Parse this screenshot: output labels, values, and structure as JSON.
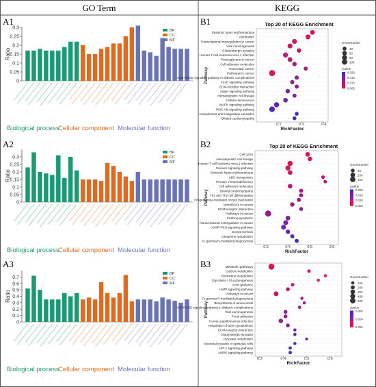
{
  "headers": {
    "go": "GO Term",
    "kegg": "KEGG"
  },
  "panel_labels": {
    "a1": "A1",
    "a2": "A2",
    "a3": "A3",
    "b1": "B1",
    "b2": "B2",
    "b3": "B3"
  },
  "go_axis": {
    "ylabel": "Ratio"
  },
  "go_legend": [
    "BP",
    "CC",
    "MF"
  ],
  "go_groups": [
    "Biological process",
    "Cellular component",
    "Molecular function"
  ],
  "kegg_axis": {
    "xlabel": "RichFactor",
    "ylabel": "Pathway"
  },
  "kegg_legend": {
    "count_title": "GeneNumber",
    "color_title": "qvalue"
  },
  "colors": {
    "bp": "#1a9a72",
    "cc": "#e06a1e",
    "mf": "#6a74b5",
    "q_low": "#e8134d",
    "q_high": "#3b2fc6"
  },
  "chart_data": [
    {
      "panel": "A1",
      "type": "bar",
      "ylim": [
        0,
        0.3
      ],
      "yticks": [
        0,
        0.05,
        0.1,
        0.15,
        0.2,
        0.25,
        0.3
      ],
      "series": [
        {
          "name": "BP",
          "values": [
            0.17,
            0.17,
            0.18,
            0.17,
            0.17,
            0.17,
            0.19,
            0.22,
            0.22
          ]
        },
        {
          "name": "CC",
          "values": [
            0.2,
            0.15,
            0.15,
            0.18,
            0.19,
            0.21,
            0.21,
            0.25,
            0.3
          ]
        },
        {
          "name": "MF",
          "values": [
            0.31,
            0.17,
            0.16,
            0.14,
            0.24,
            0.19,
            0.18,
            0.18,
            0.18
          ]
        }
      ]
    },
    {
      "panel": "A2",
      "type": "bar",
      "ylim": [
        0,
        0.35
      ],
      "yticks": [
        0,
        0.05,
        0.1,
        0.15,
        0.2,
        0.25,
        0.3
      ],
      "series": [
        {
          "name": "BP",
          "values": [
            0.23,
            0.33,
            0.2,
            0.19,
            0.18,
            0.31,
            0.16,
            0.3,
            0.21
          ]
        },
        {
          "name": "CC",
          "values": [
            0.15,
            0.15,
            0.15,
            0.14,
            0.26,
            0.24,
            0.2,
            0.17,
            0.14
          ]
        },
        {
          "name": "MF",
          "values": [
            0.2,
            0.15,
            0.15,
            0.15,
            0.15,
            0.15,
            0.15,
            0.15,
            0.15
          ]
        }
      ]
    },
    {
      "panel": "A3",
      "type": "bar",
      "ylim": [
        0,
        0.8
      ],
      "yticks": [
        0,
        0.1,
        0.2,
        0.3,
        0.4,
        0.5,
        0.6,
        0.7
      ],
      "series": [
        {
          "name": "BP",
          "values": [
            0.52,
            0.72,
            0.5,
            0.35,
            0.35,
            0.35,
            0.45,
            0.4,
            0.45
          ]
        },
        {
          "name": "CC",
          "values": [
            0.35,
            0.38,
            0.35,
            0.62,
            0.45,
            0.38,
            0.45,
            0.73,
            0.32
          ]
        },
        {
          "name": "MF",
          "values": [
            0.35,
            0.35,
            0.35,
            0.32,
            0.38,
            0.35,
            0.33,
            0.3,
            0.35
          ]
        }
      ]
    },
    {
      "panel": "B1",
      "type": "scatter",
      "title": "Top 20 of KEGG Enrichment",
      "xlim": [
        0.1,
        0.42
      ],
      "xticks": [
        0.2,
        0.3,
        0.4
      ],
      "count_legend": [
        40,
        60,
        80,
        100
      ],
      "q_legend": [
        "0.020",
        "0.015",
        "0.010",
        "0.005"
      ],
      "qlim": [
        0.002,
        0.02
      ],
      "points": [
        {
          "pathway": "Systemic lupus erythematosus",
          "x": 0.35,
          "count": 50,
          "q": 0.003
        },
        {
          "pathway": "Alcoholism",
          "x": 0.33,
          "count": 55,
          "q": 0.004
        },
        {
          "pathway": "Transcriptional misregulation in cancer",
          "x": 0.27,
          "count": 55,
          "q": 0.004
        },
        {
          "pathway": "Viral carcinogenesis",
          "x": 0.25,
          "count": 55,
          "q": 0.005
        },
        {
          "pathway": "Glutamatergic synapse",
          "x": 0.29,
          "count": 40,
          "q": 0.006
        },
        {
          "pathway": "Human T-cell leukemia virus 1 infection",
          "x": 0.23,
          "count": 60,
          "q": 0.007
        },
        {
          "pathway": "Proteoglycans in cancer",
          "x": 0.25,
          "count": 50,
          "q": 0.007
        },
        {
          "pathway": "Cell adhesion molecules",
          "x": 0.27,
          "count": 40,
          "q": 0.008
        },
        {
          "pathway": "Pancreatic cancer",
          "x": 0.32,
          "count": 30,
          "q": 0.009
        },
        {
          "pathway": "Pathways in cancer",
          "x": 0.17,
          "count": 100,
          "q": 0.004
        },
        {
          "pathway": "AGE-RAGE signaling pathway in diabetic complications",
          "x": 0.28,
          "count": 35,
          "q": 0.011
        },
        {
          "pathway": "FoxO signaling pathway",
          "x": 0.26,
          "count": 35,
          "q": 0.012
        },
        {
          "pathway": "ECM-receptor interaction",
          "x": 0.28,
          "count": 30,
          "q": 0.012
        },
        {
          "pathway": "Hippo signaling pathway",
          "x": 0.24,
          "count": 40,
          "q": 0.013
        },
        {
          "pathway": "Hematopoietic cell lineage",
          "x": 0.27,
          "count": 30,
          "q": 0.014
        },
        {
          "pathway": "Cellular senescence",
          "x": 0.23,
          "count": 45,
          "q": 0.015
        },
        {
          "pathway": "MAPK signaling pathway",
          "x": 0.19,
          "count": 65,
          "q": 0.016
        },
        {
          "pathway": "PI3K-Akt signaling pathway",
          "x": 0.17,
          "count": 85,
          "q": 0.018
        },
        {
          "pathway": "Complement and coagulation cascades",
          "x": 0.28,
          "count": 25,
          "q": 0.019
        },
        {
          "pathway": "Dilated cardiomyopathy",
          "x": 0.27,
          "count": 25,
          "q": 0.02
        }
      ]
    },
    {
      "panel": "B2",
      "type": "scatter",
      "title": "Top 20 of KEGG Enrichment",
      "xlim": [
        0.25,
        0.63
      ],
      "xticks": [
        0.3,
        0.4,
        0.5,
        0.6
      ],
      "count_legend": [
        50,
        100,
        150
      ],
      "q_legend": [
        "0.020",
        "0.015",
        "0.010",
        "0.005"
      ],
      "qlim": [
        0.002,
        0.022
      ],
      "points": [
        {
          "pathway": "Cell cycle",
          "x": 0.49,
          "count": 70,
          "q": 0.003
        },
        {
          "pathway": "Hematopoietic cell lineage",
          "x": 0.5,
          "count": 60,
          "q": 0.004
        },
        {
          "pathway": "Human T-cell leukemia virus 1 infection",
          "x": 0.41,
          "count": 100,
          "q": 0.004
        },
        {
          "pathway": "Calcium signaling pathway",
          "x": 0.4,
          "count": 90,
          "q": 0.005
        },
        {
          "pathway": "Systemic lupus erythematosus",
          "x": 0.41,
          "count": 70,
          "q": 0.006
        },
        {
          "pathway": "ABC transporters",
          "x": 0.56,
          "count": 30,
          "q": 0.006
        },
        {
          "pathway": "Primary immunodeficiency",
          "x": 0.57,
          "count": 25,
          "q": 0.007
        },
        {
          "pathway": "Cell adhesion molecules",
          "x": 0.41,
          "count": 70,
          "q": 0.008
        },
        {
          "pathway": "Dilated cardiomyopathy",
          "x": 0.46,
          "count": 50,
          "q": 0.009
        },
        {
          "pathway": "Th1 and Th2 cell differentiation",
          "x": 0.46,
          "count": 45,
          "q": 0.01
        },
        {
          "pathway": "Progesterone-mediated oocyte maturation",
          "x": 0.45,
          "count": 45,
          "q": 0.011
        },
        {
          "pathway": "MicroRNAs in cancer",
          "x": 0.42,
          "count": 60,
          "q": 0.012
        },
        {
          "pathway": "ECM-receptor interaction",
          "x": 0.46,
          "count": 40,
          "q": 0.013
        },
        {
          "pathway": "Pathways in cancer",
          "x": 0.31,
          "count": 160,
          "q": 0.012
        },
        {
          "pathway": "Cushing syndrome",
          "x": 0.4,
          "count": 70,
          "q": 0.014
        },
        {
          "pathway": "Transcriptional misregulation in cancer",
          "x": 0.39,
          "count": 80,
          "q": 0.015
        },
        {
          "pathway": "cGMP-PKG signaling pathway",
          "x": 0.38,
          "count": 80,
          "q": 0.016
        },
        {
          "pathway": "Oocyte meiosis",
          "x": 0.4,
          "count": 60,
          "q": 0.017
        },
        {
          "pathway": "Glutamine metabolism",
          "x": 0.42,
          "count": 50,
          "q": 0.019
        },
        {
          "pathway": "Fc gamma R-mediated phagocytosis",
          "x": 0.44,
          "count": 45,
          "q": 0.021
        }
      ]
    },
    {
      "panel": "B3",
      "type": "scatter",
      "xlim": [
        0.28,
        0.65
      ],
      "xticks": [
        0.3,
        0.4,
        0.5,
        0.6
      ],
      "count_legend": [
        100,
        200,
        300,
        400,
        500
      ],
      "q_legend": [
        "0.006",
        "0.004",
        "0.002"
      ],
      "qlim": [
        0.0005,
        0.007
      ],
      "points": [
        {
          "pathway": "Metabolic pathways",
          "x": 0.35,
          "count": 500,
          "q": 0.001
        },
        {
          "pathway": "Carbon metabolism",
          "x": 0.51,
          "count": 80,
          "q": 0.001
        },
        {
          "pathway": "Pyrimidine metabolism",
          "x": 0.58,
          "count": 50,
          "q": 0.001
        },
        {
          "pathway": "Glycolysis / Gluconeogenesis",
          "x": 0.55,
          "count": 50,
          "q": 0.001
        },
        {
          "pathway": "Axon guidance",
          "x": 0.44,
          "count": 100,
          "q": 0.002
        },
        {
          "pathway": "cAMP signaling pathway",
          "x": 0.42,
          "count": 130,
          "q": 0.002
        },
        {
          "pathway": "Pathways in cancer",
          "x": 0.37,
          "count": 250,
          "q": 0.002
        },
        {
          "pathway": "Fc gamma R-mediated phagocytosis",
          "x": 0.48,
          "count": 60,
          "q": 0.003
        },
        {
          "pathway": "Biosynthesis of amino acids",
          "x": 0.49,
          "count": 60,
          "q": 0.003
        },
        {
          "pathway": "AGE-RAGE signaling pathway in diabetic complications",
          "x": 0.47,
          "count": 70,
          "q": 0.003
        },
        {
          "pathway": "Viral carcinogenesis",
          "x": 0.41,
          "count": 130,
          "q": 0.004
        },
        {
          "pathway": "Focal adhesion",
          "x": 0.41,
          "count": 130,
          "q": 0.004
        },
        {
          "pathway": "Human papillomavirus infection",
          "x": 0.39,
          "count": 200,
          "q": 0.004
        },
        {
          "pathway": "Regulation of actin cytoskeleton",
          "x": 0.42,
          "count": 130,
          "q": 0.004
        },
        {
          "pathway": "ECM-receptor interaction",
          "x": 0.45,
          "count": 60,
          "q": 0.005
        },
        {
          "pathway": "Glutamatergic synapse",
          "x": 0.45,
          "count": 70,
          "q": 0.005
        },
        {
          "pathway": "Pyruvate metabolism",
          "x": 0.5,
          "count": 40,
          "q": 0.005
        },
        {
          "pathway": "Bacterial invasion of epithelial cells",
          "x": 0.45,
          "count": 60,
          "q": 0.006
        },
        {
          "pathway": "HIF-1 signaling pathway",
          "x": 0.43,
          "count": 70,
          "q": 0.006
        },
        {
          "pathway": "AMPK signaling pathway",
          "x": 0.43,
          "count": 80,
          "q": 0.007
        }
      ]
    }
  ]
}
